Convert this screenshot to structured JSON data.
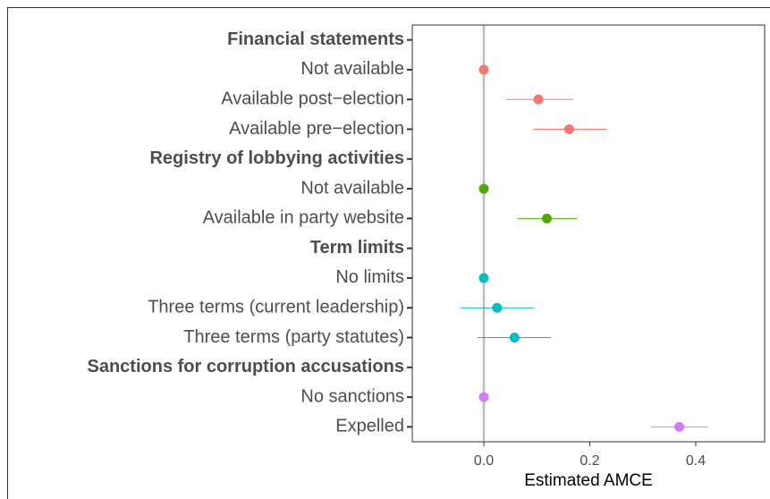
{
  "chart_data": {
    "type": "dot",
    "xlabel": "Estimated AMCE",
    "xlim": [
      -0.135,
      0.53
    ],
    "xticks": [
      {
        "value": 0,
        "label": "0.0"
      },
      0.2,
      0.4
    ],
    "vline": 0,
    "groups": [
      {
        "name": "Financial statements",
        "color": "#f8766d",
        "levels": [
          "Not available",
          "Available post−election",
          "Available pre−election"
        ],
        "values": [
          0,
          0.103,
          0.161
        ],
        "lower": [
          null,
          0.042,
          0.093
        ],
        "upper": [
          null,
          0.169,
          0.232
        ]
      },
      {
        "name": "Registry of lobbying activities",
        "color": "#53a600",
        "levels": [
          "Not available",
          "Available in party website"
        ],
        "values": [
          0,
          0.119
        ],
        "lower": [
          null,
          0.064
        ],
        "upper": [
          null,
          0.176
        ]
      },
      {
        "name": "Term limits",
        "color": "#00bfc4",
        "levels": [
          "No limits",
          "Three terms (current leadership)",
          "Three terms (party statutes)"
        ],
        "values": [
          0,
          0.025,
          0.058
        ],
        "lower": [
          null,
          -0.044,
          -0.012
        ],
        "upper": [
          null,
          0.095,
          0.127
        ]
      },
      {
        "name": "Sanctions for corruption accusations",
        "color": "#d57bf7",
        "levels": [
          "No sanctions",
          "Expelled"
        ],
        "values": [
          0,
          0.369
        ],
        "lower": [
          null,
          0.315
        ],
        "upper": [
          null,
          0.424
        ]
      }
    ]
  }
}
